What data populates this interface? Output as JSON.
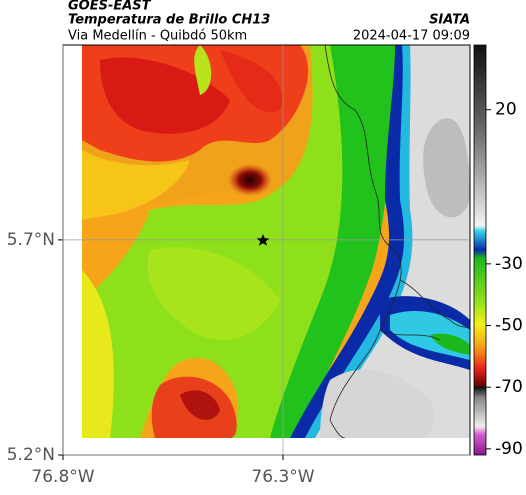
{
  "header": {
    "satellite": "GOES-EAST",
    "title": "Temperatura de Brillo CH13",
    "route": "Via Medellín - Quibdó 50km",
    "agency": "SIATA",
    "datetime": "2024-04-17 09:09"
  },
  "map": {
    "lon_range": [
      -76.8,
      -75.875
    ],
    "lat_range": [
      5.2,
      6.153
    ],
    "lat_ticks": [
      {
        "value": 5.7,
        "label": "5.7°N"
      },
      {
        "value": 5.2,
        "label": "5.2°N"
      }
    ],
    "lon_ticks": [
      {
        "value": -76.8,
        "label": "76.8°W"
      },
      {
        "value": -76.3,
        "label": "76.3°W"
      }
    ]
  },
  "colorbar": {
    "range": [
      -92,
      41
    ],
    "ticks": [
      20,
      -30,
      -50,
      -70,
      -90
    ]
  }
}
